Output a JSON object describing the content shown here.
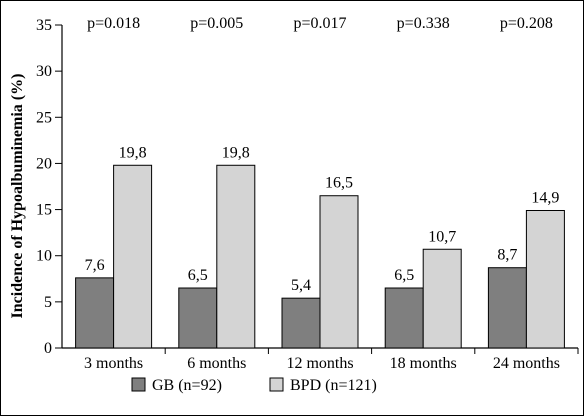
{
  "chart_data": {
    "type": "bar",
    "title": "",
    "xlabel": "",
    "ylabel": "Incidence of Hypoalbuminemia (%)",
    "ylim": [
      0,
      35
    ],
    "yticks": [
      0,
      5,
      10,
      15,
      20,
      25,
      30,
      35
    ],
    "categories": [
      "3 months",
      "6 months",
      "12 months",
      "18 months",
      "24 months"
    ],
    "series": [
      {
        "name": "GB (n=92)",
        "color": "#7f7f7f",
        "values": [
          7.6,
          6.5,
          5.4,
          6.5,
          8.7
        ],
        "labels": [
          "7,6",
          "6,5",
          "5,4",
          "6,5",
          "8,7"
        ]
      },
      {
        "name": "BPD (n=121)",
        "color": "#d4d4d4",
        "values": [
          19.8,
          19.8,
          16.5,
          10.7,
          14.9
        ],
        "labels": [
          "19,8",
          "19,8",
          "16,5",
          "10,7",
          "14,9"
        ]
      }
    ],
    "annotations": [
      "p=0.018",
      "p=0.005",
      "p=0.017",
      "p=0.338",
      "p=0.208"
    ],
    "grid": false,
    "legend_position": "bottom"
  }
}
